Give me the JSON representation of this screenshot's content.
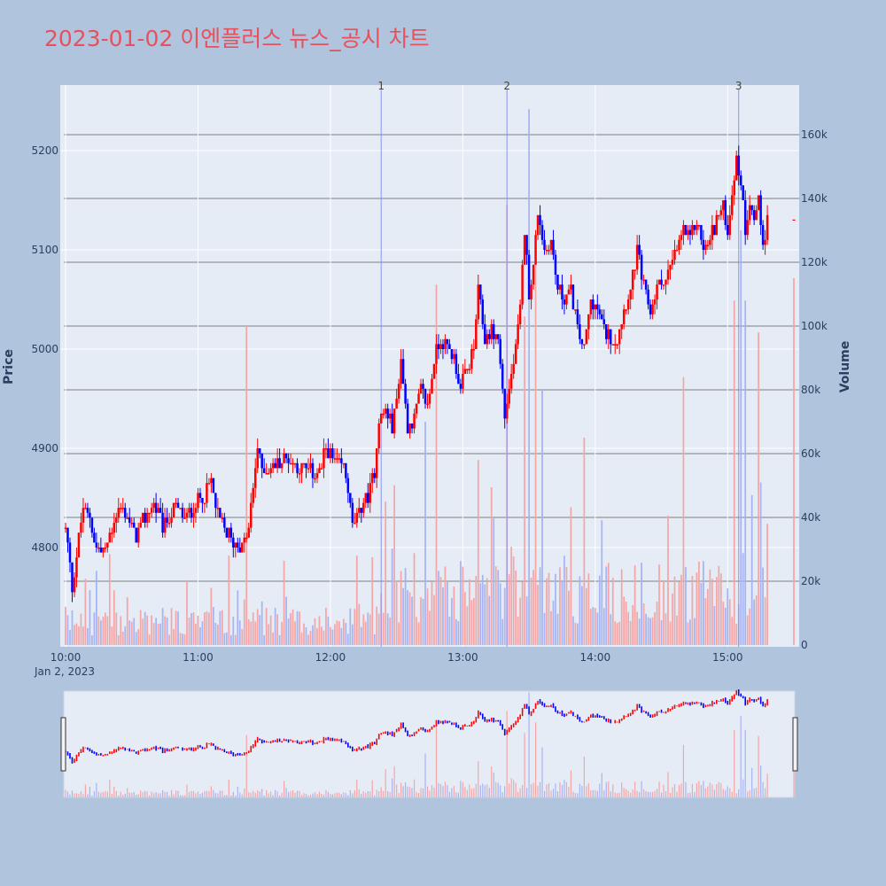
{
  "chart_data": {
    "type": "candlestick",
    "title": "2023-01-02 이엔플러스 뉴스_공시 차트",
    "ylabel": "Price",
    "y2label": "Volume",
    "ylim": [
      4700,
      5250
    ],
    "y2lim": [
      0,
      170000
    ],
    "x_range": [
      "10:00",
      "15:30"
    ],
    "x_ticks": [
      "10:00",
      "11:00",
      "12:00",
      "13:00",
      "14:00",
      "15:00"
    ],
    "x_date_label": "Jan 2, 2023",
    "y_ticks": [
      4800,
      4900,
      5000,
      5100,
      5200
    ],
    "y2_ticks": [
      {
        "value": 0,
        "label": "0"
      },
      {
        "value": 20000,
        "label": "20k"
      },
      {
        "value": 40000,
        "label": "40k"
      },
      {
        "value": 60000,
        "label": "60k"
      },
      {
        "value": 80000,
        "label": "80k"
      },
      {
        "value": 100000,
        "label": "100k"
      },
      {
        "value": 120000,
        "label": "120k"
      },
      {
        "value": 140000,
        "label": "140k"
      },
      {
        "value": 160000,
        "label": "160k"
      }
    ],
    "news_markers": [
      {
        "label": "1",
        "time": "12:23"
      },
      {
        "label": "2",
        "time": "13:20"
      },
      {
        "label": "3",
        "time": "15:05"
      }
    ],
    "up_color": "#ff0000",
    "down_color": "#0000ff",
    "price_path": [
      [
        "10:00",
        4820
      ],
      [
        "10:03",
        4760
      ],
      [
        "10:06",
        4810
      ],
      [
        "10:08",
        4840
      ],
      [
        "10:11",
        4830
      ],
      [
        "10:14",
        4800
      ],
      [
        "10:18",
        4795
      ],
      [
        "10:22",
        4830
      ],
      [
        "10:25",
        4840
      ],
      [
        "10:28",
        4830
      ],
      [
        "10:32",
        4810
      ],
      [
        "10:36",
        4830
      ],
      [
        "10:40",
        4845
      ],
      [
        "10:44",
        4820
      ],
      [
        "10:47",
        4830
      ],
      [
        "10:50",
        4840
      ],
      [
        "10:54",
        4830
      ],
      [
        "10:58",
        4840
      ],
      [
        "11:02",
        4850
      ],
      [
        "11:06",
        4865
      ],
      [
        "11:09",
        4830
      ],
      [
        "11:12",
        4820
      ],
      [
        "11:16",
        4805
      ],
      [
        "11:20",
        4800
      ],
      [
        "11:23",
        4820
      ],
      [
        "11:25",
        4860
      ],
      [
        "11:27",
        4900
      ],
      [
        "11:29",
        4880
      ],
      [
        "11:32",
        4880
      ],
      [
        "11:36",
        4885
      ],
      [
        "11:40",
        4890
      ],
      [
        "11:44",
        4885
      ],
      [
        "11:48",
        4880
      ],
      [
        "11:52",
        4875
      ],
      [
        "11:56",
        4880
      ],
      [
        "11:58",
        4900
      ],
      [
        "12:02",
        4885
      ],
      [
        "12:06",
        4880
      ],
      [
        "12:08",
        4860
      ],
      [
        "12:10",
        4820
      ],
      [
        "12:14",
        4840
      ],
      [
        "12:18",
        4860
      ],
      [
        "12:20",
        4880
      ],
      [
        "12:22",
        4930
      ],
      [
        "12:25",
        4940
      ],
      [
        "12:28",
        4920
      ],
      [
        "12:30",
        4950
      ],
      [
        "12:32",
        4990
      ],
      [
        "12:35",
        4920
      ],
      [
        "12:38",
        4930
      ],
      [
        "12:41",
        4960
      ],
      [
        "12:44",
        4940
      ],
      [
        "12:47",
        4990
      ],
      [
        "12:50",
        5010
      ],
      [
        "12:53",
        5000
      ],
      [
        "12:56",
        4990
      ],
      [
        "12:59",
        4960
      ],
      [
        "13:02",
        4980
      ],
      [
        "13:05",
        5000
      ],
      [
        "13:07",
        5060
      ],
      [
        "13:10",
        5010
      ],
      [
        "13:13",
        5020
      ],
      [
        "13:16",
        5010
      ],
      [
        "13:19",
        4930
      ],
      [
        "13:21",
        4960
      ],
      [
        "13:24",
        5000
      ],
      [
        "13:26",
        5040
      ],
      [
        "13:28",
        5120
      ],
      [
        "13:30",
        5060
      ],
      [
        "13:32",
        5080
      ],
      [
        "13:34",
        5140
      ],
      [
        "13:37",
        5100
      ],
      [
        "13:40",
        5110
      ],
      [
        "13:43",
        5060
      ],
      [
        "13:46",
        5050
      ],
      [
        "13:49",
        5060
      ],
      [
        "13:52",
        5020
      ],
      [
        "13:55",
        5000
      ],
      [
        "13:58",
        5050
      ],
      [
        "14:01",
        5040
      ],
      [
        "14:04",
        5020
      ],
      [
        "14:07",
        5010
      ],
      [
        "14:10",
        5010
      ],
      [
        "14:13",
        5040
      ],
      [
        "14:16",
        5060
      ],
      [
        "14:19",
        5100
      ],
      [
        "14:22",
        5060
      ],
      [
        "14:25",
        5040
      ],
      [
        "14:28",
        5060
      ],
      [
        "14:31",
        5070
      ],
      [
        "14:34",
        5080
      ],
      [
        "14:37",
        5100
      ],
      [
        "14:40",
        5120
      ],
      [
        "14:43",
        5110
      ],
      [
        "14:46",
        5130
      ],
      [
        "14:49",
        5100
      ],
      [
        "14:52",
        5110
      ],
      [
        "14:55",
        5130
      ],
      [
        "14:58",
        5140
      ],
      [
        "15:00",
        5120
      ],
      [
        "15:02",
        5160
      ],
      [
        "15:04",
        5190
      ],
      [
        "15:06",
        5170
      ],
      [
        "15:08",
        5120
      ],
      [
        "15:10",
        5150
      ],
      [
        "15:12",
        5130
      ],
      [
        "15:14",
        5150
      ],
      [
        "15:16",
        5110
      ],
      [
        "15:18",
        5130
      ]
    ],
    "volume_spikes": [
      [
        "11:22",
        100000
      ],
      [
        "12:12",
        28000
      ],
      [
        "12:25",
        45000
      ],
      [
        "12:43",
        70000
      ],
      [
        "12:48",
        113000
      ],
      [
        "13:07",
        58000
      ],
      [
        "13:20",
        138000
      ],
      [
        "13:28",
        103000
      ],
      [
        "13:30",
        168000
      ],
      [
        "13:33",
        120000
      ],
      [
        "13:36",
        80000
      ],
      [
        "13:55",
        65000
      ],
      [
        "14:40",
        84000
      ],
      [
        "15:03",
        108000
      ],
      [
        "15:06",
        130000
      ],
      [
        "15:08",
        108000
      ],
      [
        "15:11",
        47000
      ],
      [
        "15:14",
        98000
      ],
      [
        "15:18",
        38000
      ],
      [
        "15:30",
        115000
      ]
    ]
  }
}
